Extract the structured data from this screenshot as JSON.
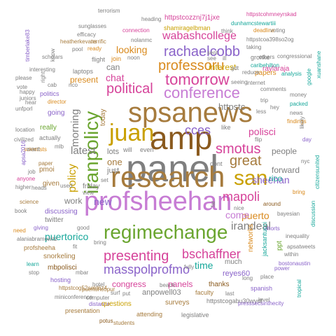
{
  "palette": {
    "gray": "#7f7f7f",
    "orange": "#d98a1e",
    "purple": "#8a63c9",
    "teal": "#16a79a",
    "pink": "#d6439a",
    "green": "#6aa52f",
    "gold": "#c9a000",
    "brown": "#a67b3d",
    "orchid": "#c77cd4",
    "olive": "#9aa21b",
    "darkgray": "#555555"
  },
  "words": [
    "amp",
    "panel",
    "research",
    "spsanews",
    "juan",
    "profsheehan",
    "iranpolicy",
    "san",
    "regimechange",
    "conference",
    "tomorrow",
    "professoru",
    "rachaelcobb",
    "smotus",
    "political",
    "great",
    "presenting",
    "bschaffner",
    "masspolprofmo",
    "mapoli",
    "cces",
    "policy",
    "wabashcollege",
    "morning",
    "latest",
    "looking",
    "yadda",
    "irandeal",
    "sheehan",
    "puerto",
    "polisci",
    "puertorico",
    "time",
    "come",
    "new",
    "chat",
    "httpstc",
    "rico",
    "people",
    "forward",
    "can",
    "interest",
    "work",
    "panels",
    "congress",
    "anpowell03",
    "reyes60",
    "theprofsheehan",
    "ppt",
    "one",
    "just",
    "today",
    "lots",
    "presentation",
    "attending",
    "students",
    "potus",
    "distance",
    "computer",
    "level",
    "bostonaustin",
    "xuanshane",
    "inequality",
    "apsatweets",
    "shorts",
    "bayesian",
    "around",
    "bring",
    "nyc",
    "citizensunited",
    "terrorism",
    "heading",
    "httpstcozznj7j1jxe",
    "httpstcohmneyrskad",
    "sunglasses",
    "shamiragelbman",
    "deadline",
    "dunhamcstewartiii",
    "efficacy",
    "terrific",
    "connection",
    "heatherkevans",
    "nolanmc",
    "pool",
    "ready",
    "flight",
    "join",
    "noon",
    "voting",
    "httpstcoa398so2og",
    "congressional",
    "caribehilton",
    "gronke",
    "raylaraja",
    "papers",
    "gdt",
    "analysis",
    "google",
    "money",
    "packed",
    "news",
    "findings",
    "likely",
    "day",
    "vote",
    "unfporl",
    "politics",
    "director",
    "going",
    "really",
    "actually",
    "mlb",
    "scientists",
    "paper",
    "pmoi",
    "given",
    "anyone",
    "heads",
    "science",
    "book",
    "discussing",
    "twitter",
    "giving",
    "need",
    "alaniabramowitz",
    "profsheeha",
    "snorkeling",
    "mbpolisci",
    "hosting",
    "puertoricopur",
    "httpstcog52seld6z4",
    "miniconference",
    "questions",
    "surveys",
    "httpstcogabu30wydf",
    "presssecsinthecity",
    "legislative",
    "thanks",
    "faculty",
    "much",
    "networks",
    "jacksantucci",
    "spanish",
    "tropical",
    "stop",
    "learn",
    "mbar",
    "hotel",
    "surf",
    "put",
    "beach",
    "last",
    "long",
    "place",
    "power",
    "within",
    "discussion",
    "fit",
    "bring",
    "sent",
    "hear",
    "happy",
    "juniors",
    "please",
    "interesting",
    "scholars",
    "timberlake83",
    "know",
    "laptops",
    "present",
    "cab",
    "right",
    "civilized",
    "location",
    "apsa2016",
    "want",
    "job",
    "higher",
    "used",
    "travel",
    "followed",
    "check",
    "rebel",
    "seeing",
    "taking",
    "others",
    "internet",
    "comments",
    "trip",
    "hey",
    "flip",
    "less",
    "like",
    "dont",
    "will",
    "even",
    "set",
    "also",
    "nice",
    "far",
    "fully",
    "lead",
    "open",
    "see",
    "ill",
    "reduce",
    "think",
    "cost",
    "may",
    "get",
    "good",
    "friday",
    "view",
    "rico",
    "httpstco",
    "oh",
    "mpsa"
  ]
}
